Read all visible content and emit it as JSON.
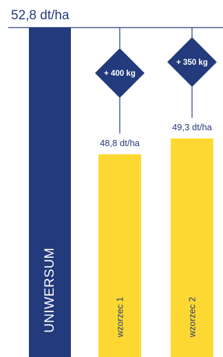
{
  "colors": {
    "primary": "#233A7C",
    "comparison": "#FDD832",
    "text": "#233A7C",
    "background": "#FFFFFF"
  },
  "chart_data": {
    "type": "bar",
    "categories": [
      "UNIWERSUM",
      "wzorzec 1",
      "wzorzec 2"
    ],
    "values": [
      52.8,
      48.8,
      49.3
    ],
    "value_labels": [
      "52,8 dt/ha",
      "48,8 dt/ha",
      "49,3 dt/ha"
    ],
    "differences": [
      "",
      "+ 400 kg",
      "+ 350 kg"
    ],
    "bar_colors": [
      "#233A7C",
      "#FDD832",
      "#FDD832"
    ],
    "y_range": [
      0,
      52.8
    ]
  }
}
